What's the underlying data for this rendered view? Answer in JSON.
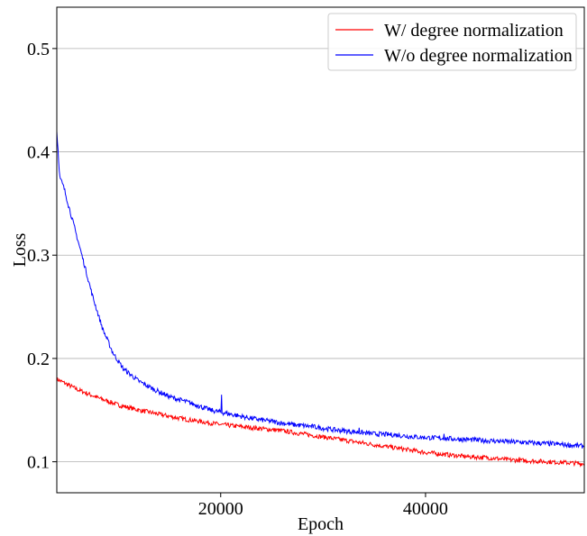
{
  "chart_data": {
    "type": "line",
    "title": "",
    "xlabel": "Epoch",
    "ylabel": "Loss",
    "xlim": [
      4000,
      55500
    ],
    "ylim": [
      0.07,
      0.54
    ],
    "x_ticks": [
      20000,
      40000
    ],
    "x_tick_labels": [
      "20000",
      "40000"
    ],
    "y_ticks": [
      0.1,
      0.2,
      0.3,
      0.4,
      0.5
    ],
    "y_tick_labels": [
      "0.1",
      "0.2",
      "0.3",
      "0.4",
      "0.5"
    ],
    "grid": "horizontal",
    "legend_position": "top-right",
    "series": [
      {
        "name": "W/ degree normalization",
        "color": "#ff0000",
        "points": [
          [
            4000,
            0.18
          ],
          [
            5000,
            0.175
          ],
          [
            6000,
            0.17
          ],
          [
            8000,
            0.162
          ],
          [
            10000,
            0.155
          ],
          [
            12000,
            0.15
          ],
          [
            14000,
            0.146
          ],
          [
            16000,
            0.142
          ],
          [
            18000,
            0.139
          ],
          [
            20000,
            0.136
          ],
          [
            22000,
            0.134
          ],
          [
            24000,
            0.132
          ],
          [
            26000,
            0.13
          ],
          [
            28000,
            0.127
          ],
          [
            30000,
            0.124
          ],
          [
            32000,
            0.121
          ],
          [
            34000,
            0.118
          ],
          [
            36000,
            0.115
          ],
          [
            38000,
            0.112
          ],
          [
            40000,
            0.109
          ],
          [
            42000,
            0.107
          ],
          [
            44000,
            0.105
          ],
          [
            46000,
            0.104
          ],
          [
            48000,
            0.102
          ],
          [
            50000,
            0.101
          ],
          [
            52000,
            0.1
          ],
          [
            54000,
            0.099
          ],
          [
            55500,
            0.098
          ]
        ],
        "noise": 0.0022,
        "spikes": []
      },
      {
        "name": "W/o degree normalization",
        "color": "#0000ff",
        "points": [
          [
            4000,
            0.42
          ],
          [
            4300,
            0.375
          ],
          [
            4700,
            0.365
          ],
          [
            5500,
            0.335
          ],
          [
            6500,
            0.298
          ],
          [
            7500,
            0.26
          ],
          [
            8500,
            0.228
          ],
          [
            9500,
            0.205
          ],
          [
            10500,
            0.19
          ],
          [
            12000,
            0.178
          ],
          [
            13500,
            0.17
          ],
          [
            15000,
            0.163
          ],
          [
            17000,
            0.157
          ],
          [
            19000,
            0.15
          ],
          [
            21000,
            0.146
          ],
          [
            23000,
            0.142
          ],
          [
            25000,
            0.139
          ],
          [
            27000,
            0.136
          ],
          [
            29000,
            0.134
          ],
          [
            31000,
            0.131
          ],
          [
            33000,
            0.129
          ],
          [
            35000,
            0.127
          ],
          [
            37000,
            0.126
          ],
          [
            39000,
            0.124
          ],
          [
            41000,
            0.123
          ],
          [
            43000,
            0.122
          ],
          [
            45000,
            0.121
          ],
          [
            47000,
            0.12
          ],
          [
            49000,
            0.119
          ],
          [
            51000,
            0.118
          ],
          [
            53000,
            0.117
          ],
          [
            55500,
            0.115
          ]
        ],
        "noise": 0.0024,
        "spikes": [
          [
            17800,
            0.155
          ],
          [
            20100,
            0.165
          ],
          [
            33500,
            0.133
          ],
          [
            41800,
            0.127
          ]
        ]
      }
    ]
  }
}
